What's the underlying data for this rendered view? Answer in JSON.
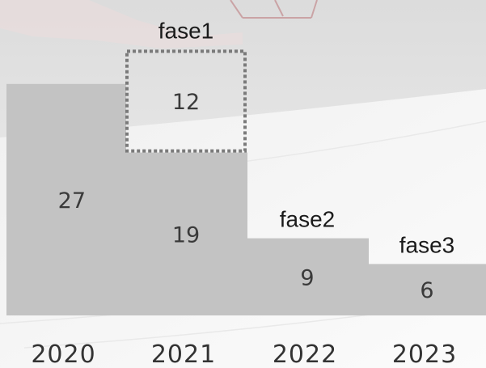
{
  "chart_data": {
    "type": "bar",
    "stacked": true,
    "categories": [
      "2020",
      "2021",
      "2022",
      "2023"
    ],
    "segments": [
      {
        "category": "2020",
        "value": 27,
        "highlighted": false
      },
      {
        "category": "2021",
        "value": 19,
        "highlighted": false
      },
      {
        "category": "2021",
        "value": 12,
        "highlighted": true
      },
      {
        "category": "2022",
        "value": 9,
        "highlighted": false
      },
      {
        "category": "2023",
        "value": 6,
        "highlighted": false
      }
    ],
    "annotations": [
      {
        "text": "fase1",
        "category": "2021"
      },
      {
        "text": "fase2",
        "category": "2022"
      },
      {
        "text": "fase3",
        "category": "2023"
      }
    ],
    "ylim": [
      0,
      33
    ],
    "grid": false,
    "legend": "none",
    "bar_color": "#c3c3c3",
    "highlight_border_color": "#7a7a7a"
  }
}
